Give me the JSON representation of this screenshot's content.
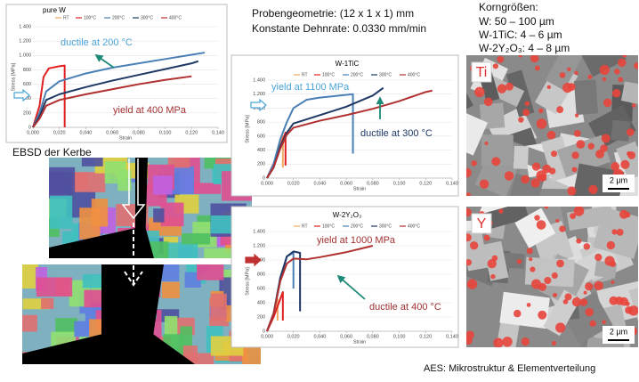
{
  "chart_data": [
    {
      "type": "line",
      "title": "pure W",
      "ylabel": "Stress [MPa]",
      "xlabel": "Strain",
      "xlim": [
        0,
        0.14
      ],
      "ylim": [
        0,
        1400
      ],
      "xticks": [
        {
          "value": 0,
          "label": "0,000"
        },
        {
          "value": 0.02,
          "label": "0,020"
        },
        {
          "value": 0.04,
          "label": "0,040"
        },
        {
          "value": 0.06,
          "label": "0,060"
        },
        {
          "value": 0.08,
          "label": "0,080"
        },
        {
          "value": 0.1,
          "label": "0,100"
        },
        {
          "value": 0.12,
          "label": "0,120"
        },
        {
          "value": 0.14,
          "label": "0,140"
        }
      ],
      "yticks": [
        0,
        200,
        400,
        600,
        800,
        {
          "value": 1000,
          "label": "1.000"
        },
        {
          "value": 1200,
          "label": "1.200"
        },
        {
          "value": 1400,
          "label": "1.400"
        }
      ],
      "grid": true,
      "series": [
        {
          "name": "RT",
          "color": "#f0a860",
          "x": [
            0,
            0.004,
            0.008
          ],
          "values": [
            0,
            150,
            350
          ]
        },
        {
          "name": "100°C",
          "color": "#e02020",
          "x": [
            0,
            0.005,
            0.008,
            0.012,
            0.02,
            0.024,
            0.024
          ],
          "values": [
            0,
            300,
            700,
            820,
            850,
            860,
            0
          ]
        },
        {
          "name": "200°C",
          "color": "#4a7fb5",
          "x": [
            0,
            0.005,
            0.01,
            0.02,
            0.04,
            0.06,
            0.08,
            0.1,
            0.12,
            0.13
          ],
          "values": [
            0,
            200,
            500,
            640,
            750,
            830,
            890,
            950,
            1010,
            1040
          ]
        },
        {
          "name": "300°C",
          "color": "#1f3864",
          "x": [
            0,
            0.005,
            0.01,
            0.02,
            0.04,
            0.06,
            0.08,
            0.1,
            0.12,
            0.125
          ],
          "values": [
            0,
            150,
            380,
            460,
            560,
            650,
            730,
            810,
            890,
            920
          ]
        },
        {
          "name": "400°C",
          "color": "#b03030",
          "x": [
            0,
            0.005,
            0.01,
            0.02,
            0.04,
            0.06,
            0.08,
            0.1,
            0.12
          ],
          "values": [
            0,
            120,
            300,
            380,
            460,
            530,
            600,
            660,
            710
          ]
        }
      ],
      "annotations": [
        {
          "text": "ductile at 200 °C",
          "color": "#4aa3d8"
        },
        {
          "text": "yield at 400 MPa",
          "color": "#a03030"
        }
      ]
    },
    {
      "type": "line",
      "title": "W-1TiC",
      "ylabel": "Stress [MPa]",
      "xlabel": "Strain",
      "xlim": [
        0,
        0.14
      ],
      "ylim": [
        0,
        1400
      ],
      "xticks": [
        {
          "value": 0,
          "label": "0,000"
        },
        {
          "value": 0.02,
          "label": "0,020"
        },
        {
          "value": 0.04,
          "label": "0,040"
        },
        {
          "value": 0.06,
          "label": "0,060"
        },
        {
          "value": 0.08,
          "label": "0,080"
        },
        {
          "value": 0.1,
          "label": "0,100"
        },
        {
          "value": 0.12,
          "label": "0,120"
        },
        {
          "value": 0.14,
          "label": "0,140"
        }
      ],
      "yticks": [
        0,
        200,
        400,
        600,
        800,
        {
          "value": 1000,
          "label": "1.000"
        },
        {
          "value": 1200,
          "label": "1.200"
        },
        {
          "value": 1400,
          "label": "1.400"
        }
      ],
      "grid": true,
      "series": [
        {
          "name": "RT",
          "color": "#f0a860",
          "x": [
            0,
            0.005,
            0.01,
            0.012,
            0.012
          ],
          "values": [
            0,
            200,
            500,
            600,
            150
          ]
        },
        {
          "name": "100°C",
          "color": "#e02020",
          "x": [
            0,
            0.006,
            0.012,
            0.014,
            0.014
          ],
          "values": [
            0,
            250,
            550,
            650,
            180
          ]
        },
        {
          "name": "200°C",
          "color": "#4a7fb5",
          "x": [
            0,
            0.005,
            0.01,
            0.015,
            0.02,
            0.03,
            0.04,
            0.05,
            0.06,
            0.065,
            0.065
          ],
          "values": [
            0,
            200,
            550,
            800,
            1000,
            1120,
            1150,
            1170,
            1190,
            1200,
            350
          ]
        },
        {
          "name": "300°C",
          "color": "#1f3864",
          "x": [
            0,
            0.005,
            0.01,
            0.015,
            0.02,
            0.04,
            0.06,
            0.08,
            0.088
          ],
          "values": [
            0,
            150,
            450,
            650,
            780,
            900,
            1020,
            1180,
            1290
          ]
        },
        {
          "name": "400°C",
          "color": "#b03030",
          "x": [
            0,
            0.005,
            0.01,
            0.015,
            0.02,
            0.04,
            0.06,
            0.08,
            0.1,
            0.12,
            0.125
          ],
          "values": [
            0,
            150,
            420,
            620,
            720,
            820,
            900,
            990,
            1100,
            1230,
            1250
          ]
        }
      ],
      "annotations": [
        {
          "text": "yield at 1100 MPa",
          "color": "#4aa3d8"
        },
        {
          "text": "ductile at 300 °C",
          "color": "#1f3864"
        }
      ]
    },
    {
      "type": "line",
      "title": "W-2Y₂O₃",
      "ylabel": "Stress [MPa]",
      "xlabel": "Strain",
      "xlim": [
        0,
        0.14
      ],
      "ylim": [
        0,
        1400
      ],
      "xticks": [
        {
          "value": 0,
          "label": "0,000"
        },
        {
          "value": 0.02,
          "label": "0,020"
        },
        {
          "value": 0.04,
          "label": "0,040"
        },
        {
          "value": 0.06,
          "label": "0,060"
        },
        {
          "value": 0.08,
          "label": "0,080"
        },
        {
          "value": 0.1,
          "label": "0,100"
        },
        {
          "value": 0.12,
          "label": "0,120"
        },
        {
          "value": 0.14,
          "label": "0,140"
        }
      ],
      "yticks": [
        0,
        200,
        400,
        600,
        800,
        {
          "value": 1000,
          "label": "1.000"
        },
        {
          "value": 1200,
          "label": "1.200"
        },
        {
          "value": 1400,
          "label": "1.400"
        }
      ],
      "grid": true,
      "series": [
        {
          "name": "RT",
          "color": "#f0a860",
          "x": [
            0,
            0.005,
            0.008,
            0.008
          ],
          "values": [
            0,
            200,
            450,
            150
          ]
        },
        {
          "name": "100°C",
          "color": "#e02020",
          "x": [
            0,
            0.005,
            0.01,
            0.012,
            0.012
          ],
          "values": [
            0,
            200,
            450,
            550,
            150
          ]
        },
        {
          "name": "200°C",
          "color": "#4a7fb5",
          "x": [
            0,
            0.005,
            0.01,
            0.015,
            0.02,
            0.02
          ],
          "values": [
            0,
            250,
            700,
            1050,
            1100,
            600
          ]
        },
        {
          "name": "300°C",
          "color": "#1f3864",
          "x": [
            0,
            0.005,
            0.01,
            0.015,
            0.02,
            0.025,
            0.025
          ],
          "values": [
            0,
            250,
            750,
            1050,
            1120,
            1100,
            280
          ]
        },
        {
          "name": "400°C",
          "color": "#b03030",
          "x": [
            0,
            0.005,
            0.01,
            0.015,
            0.02,
            0.03,
            0.04,
            0.06,
            0.08
          ],
          "values": [
            0,
            250,
            700,
            950,
            1020,
            1010,
            1040,
            1110,
            1200
          ]
        }
      ],
      "annotations": [
        {
          "text": "yield at 1000 MPa",
          "color": "#a03030"
        },
        {
          "text": "ductile at 400 °C",
          "color": "#a03030"
        }
      ]
    }
  ],
  "info": {
    "lines": [
      "Probengeometrie: (12 x 1 x 1) mm",
      "Konstante Dehnrate: 0.0330 mm/min"
    ]
  },
  "grain_sizes": {
    "title": "Korngrößen:",
    "lines": [
      "W: 50 – 100 µm",
      "W-1TiC: 4 – 6 µm",
      "W-2Y₂O₃: 4 – 8 µm"
    ]
  },
  "ebsd_label": "EBSD der Kerbe",
  "images": [
    {
      "element": "Ti",
      "scale": "2 µm"
    },
    {
      "element": "Y",
      "scale": "2 µm"
    }
  ],
  "footer": "AES: Mikrostruktur & Elementverteilung"
}
